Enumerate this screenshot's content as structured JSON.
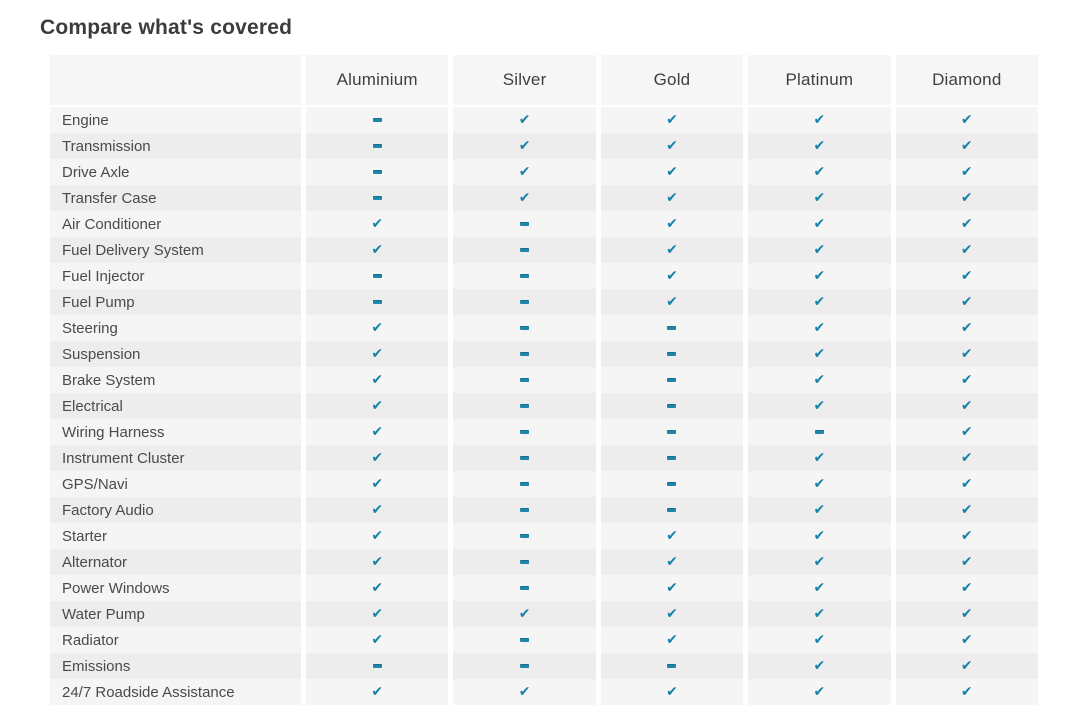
{
  "title": "Compare what's covered",
  "icons": {
    "check": "✔",
    "dash": "-"
  },
  "colors": {
    "check_teal": "#1781a8",
    "row_light": "#f5f5f5",
    "row_dark": "#ededed",
    "header_bg": "#f6f6f6"
  },
  "table": {
    "plans": [
      "Aluminium",
      "Silver",
      "Gold",
      "Platinum",
      "Diamond"
    ],
    "rows": [
      {
        "label": "Engine",
        "covered": [
          false,
          true,
          true,
          true,
          true
        ]
      },
      {
        "label": "Transmission",
        "covered": [
          false,
          true,
          true,
          true,
          true
        ]
      },
      {
        "label": "Drive Axle",
        "covered": [
          false,
          true,
          true,
          true,
          true
        ]
      },
      {
        "label": "Transfer Case",
        "covered": [
          false,
          true,
          true,
          true,
          true
        ]
      },
      {
        "label": "Air Conditioner",
        "covered": [
          true,
          false,
          true,
          true,
          true
        ]
      },
      {
        "label": "Fuel Delivery System",
        "covered": [
          true,
          false,
          true,
          true,
          true
        ]
      },
      {
        "label": "Fuel Injector",
        "covered": [
          false,
          false,
          true,
          true,
          true
        ]
      },
      {
        "label": "Fuel Pump",
        "covered": [
          false,
          false,
          true,
          true,
          true
        ]
      },
      {
        "label": "Steering",
        "covered": [
          true,
          false,
          false,
          true,
          true
        ]
      },
      {
        "label": "Suspension",
        "covered": [
          true,
          false,
          false,
          true,
          true
        ]
      },
      {
        "label": "Brake System",
        "covered": [
          true,
          false,
          false,
          true,
          true
        ]
      },
      {
        "label": "Electrical",
        "covered": [
          true,
          false,
          false,
          true,
          true
        ]
      },
      {
        "label": "Wiring Harness",
        "covered": [
          true,
          false,
          false,
          false,
          true
        ]
      },
      {
        "label": "Instrument Cluster",
        "covered": [
          true,
          false,
          false,
          true,
          true
        ]
      },
      {
        "label": "GPS/Navi",
        "covered": [
          true,
          false,
          false,
          true,
          true
        ]
      },
      {
        "label": "Factory Audio",
        "covered": [
          true,
          false,
          false,
          true,
          true
        ]
      },
      {
        "label": "Starter",
        "covered": [
          true,
          false,
          true,
          true,
          true
        ]
      },
      {
        "label": "Alternator",
        "covered": [
          true,
          false,
          true,
          true,
          true
        ]
      },
      {
        "label": "Power Windows",
        "covered": [
          true,
          false,
          true,
          true,
          true
        ]
      },
      {
        "label": "Water Pump",
        "covered": [
          true,
          true,
          true,
          true,
          true
        ]
      },
      {
        "label": "Radiator",
        "covered": [
          true,
          false,
          true,
          true,
          true
        ]
      },
      {
        "label": "Emissions",
        "covered": [
          false,
          false,
          false,
          true,
          true
        ]
      },
      {
        "label": "24/7 Roadside Assistance",
        "covered": [
          true,
          true,
          true,
          true,
          true
        ]
      }
    ]
  }
}
